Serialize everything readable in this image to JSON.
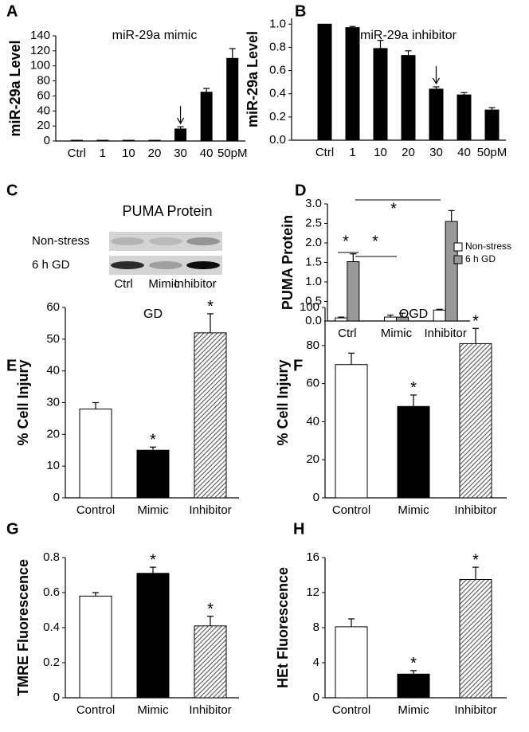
{
  "chart_data": [
    {
      "type": "bar",
      "label": "A",
      "title": "miR-29a mimic",
      "ylabel": "miR-29a Level",
      "categories": [
        "Ctrl",
        "1",
        "10",
        "20",
        "30",
        "40",
        "50pM"
      ],
      "values": [
        1,
        1,
        1,
        1,
        16,
        65,
        110
      ],
      "errors": [
        0,
        0,
        0,
        0,
        3,
        5,
        13
      ],
      "color": "#000000",
      "ylim": [
        0,
        140
      ],
      "yticks": [
        0,
        20,
        40,
        60,
        80,
        100,
        120,
        140
      ]
    },
    {
      "type": "bar",
      "label": "B",
      "title": "miR-29a inhibitor",
      "ylabel": "miR-29a Level",
      "categories": [
        "Ctrl",
        "1",
        "10",
        "20",
        "30",
        "40",
        "50pM"
      ],
      "values": [
        1.0,
        0.97,
        0.79,
        0.73,
        0.44,
        0.39,
        0.26
      ],
      "errors": [
        0,
        0.01,
        0.07,
        0.04,
        0.02,
        0.02,
        0.02
      ],
      "color": "#000000",
      "ylim": [
        0,
        1.05
      ],
      "yticks": [
        {
          "value": 0,
          "label": "0.0"
        },
        0.2,
        0.4,
        0.6,
        0.8,
        {
          "value": 1,
          "label": "1.0"
        }
      ]
    },
    {
      "type": "blot",
      "label": "C",
      "title": "PUMA Protein",
      "rows": [
        "Non-stress",
        "6 h GD"
      ],
      "lanes": [
        "Ctrl",
        "Mimic",
        "Inhibitor"
      ]
    },
    {
      "type": "grouped-bar",
      "label": "D",
      "ylabel": "PUMA Protein",
      "categories": [
        "Ctrl",
        "Mimic",
        "Inhibitor"
      ],
      "series": [
        {
          "name": "Non-stress",
          "color": "#ffffff",
          "values": [
            0.08,
            0.1,
            0.28
          ],
          "errors": [
            0.02,
            0.05,
            0.02
          ]
        },
        {
          "name": "6 h GD",
          "color": "#999999",
          "values": [
            1.52,
            0.1,
            2.55
          ],
          "errors": [
            0.2,
            0.1,
            0.28
          ]
        }
      ],
      "ylim": [
        0,
        3
      ],
      "yticks": [
        {
          "value": 0,
          "label": "0.0"
        },
        0.5,
        {
          "value": 1,
          "label": "1.0"
        },
        1.5,
        {
          "value": 2,
          "label": "2.0"
        },
        2.5,
        {
          "value": 3,
          "label": "3.0"
        }
      ],
      "legend": "upper right",
      "annotations": [
        "*",
        "*",
        "*"
      ]
    },
    {
      "type": "bar",
      "label": "E",
      "title": "GD",
      "ylabel": "% Cell Injury",
      "categories": [
        "Control",
        "Mimic",
        "Inhibitor"
      ],
      "values": [
        28,
        15,
        52
      ],
      "errors": [
        2,
        1,
        6
      ],
      "fills": [
        "white",
        "black",
        "hatched"
      ],
      "significance": [
        null,
        "*",
        "*"
      ],
      "ylim": [
        0,
        60
      ],
      "yticks": [
        0,
        10,
        20,
        30,
        40,
        50,
        60
      ]
    },
    {
      "type": "bar",
      "label": "F",
      "title": "OGD",
      "ylabel": "% Cell Injury",
      "categories": [
        "Control",
        "Mimic",
        "Inhibitor"
      ],
      "values": [
        70,
        48,
        81
      ],
      "errors": [
        6,
        6,
        8
      ],
      "fills": [
        "white",
        "black",
        "hatched"
      ],
      "significance": [
        null,
        "*",
        "*"
      ],
      "ylim": [
        0,
        100
      ],
      "yticks": [
        0,
        20,
        40,
        60,
        80,
        100
      ]
    },
    {
      "type": "bar",
      "label": "G",
      "ylabel": "TMRE Fluorescence",
      "categories": [
        "Control",
        "Mimic",
        "Inhibitor"
      ],
      "values": [
        0.58,
        0.71,
        0.41
      ],
      "errors": [
        0.02,
        0.035,
        0.055
      ],
      "fills": [
        "white",
        "black",
        "hatched"
      ],
      "significance": [
        null,
        "*",
        "*"
      ],
      "ylim": [
        0,
        0.8
      ],
      "yticks": [
        0,
        0.2,
        0.4,
        0.6,
        0.8
      ]
    },
    {
      "type": "bar",
      "label": "H",
      "ylabel": "HEt Fluorescence",
      "categories": [
        "Control",
        "Mimic",
        "Inhibitor"
      ],
      "values": [
        8.1,
        2.7,
        13.5
      ],
      "errors": [
        0.9,
        0.4,
        1.4
      ],
      "fills": [
        "white",
        "black",
        "hatched"
      ],
      "significance": [
        null,
        "*",
        "*"
      ],
      "ylim": [
        0,
        16
      ],
      "yticks": [
        0,
        4,
        8,
        12,
        16
      ]
    }
  ]
}
